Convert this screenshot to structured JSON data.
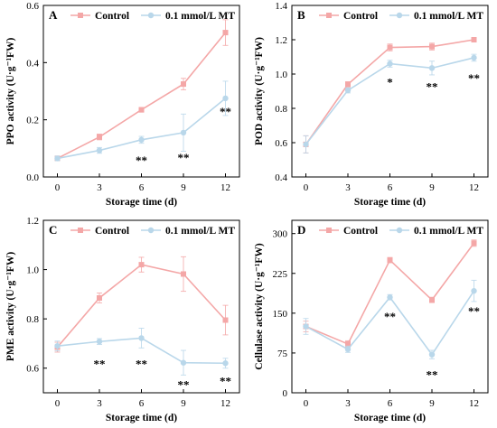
{
  "chart_data": [
    {
      "type": "line",
      "panel": "A",
      "xlabel": "Storage time (d)",
      "ylabel": "PPO activity (U·g⁻¹FW)",
      "x": [
        0,
        3,
        6,
        9,
        12
      ],
      "xlim": [
        -1,
        13
      ],
      "ylim": [
        0,
        0.6
      ],
      "yticks": [
        0,
        0.2,
        0.4,
        0.6
      ],
      "ytick_labels": [
        "0.0",
        "0.2",
        "0.4",
        "0.6"
      ],
      "grid": false,
      "legend": "top",
      "series": [
        {
          "name": "Control",
          "color": "#f4a7a7",
          "marker": "square",
          "values": [
            0.065,
            0.14,
            0.235,
            0.325,
            0.505
          ],
          "errors": [
            0.008,
            0.01,
            0.008,
            0.02,
            0.045
          ]
        },
        {
          "name": "0.1 mmol/L MT",
          "color": "#b9d7ea",
          "marker": "circle",
          "values": [
            0.065,
            0.093,
            0.13,
            0.155,
            0.275
          ],
          "errors": [
            0.008,
            0.01,
            0.012,
            0.065,
            0.06
          ]
        }
      ],
      "annotations": [
        {
          "x": 6,
          "y": 0.06,
          "text": "**"
        },
        {
          "x": 9,
          "y": 0.07,
          "text": "**"
        },
        {
          "x": 12,
          "y": 0.23,
          "text": "**"
        }
      ]
    },
    {
      "type": "line",
      "panel": "B",
      "xlabel": "Storage time (d)",
      "ylabel": "POD activity (U·g⁻¹FW)",
      "x": [
        0,
        3,
        6,
        9,
        12
      ],
      "xlim": [
        -1,
        13
      ],
      "ylim": [
        0.4,
        1.4
      ],
      "yticks": [
        0.4,
        0.6,
        0.8,
        1.0,
        1.2,
        1.4
      ],
      "ytick_labels": [
        "0.4",
        "0.6",
        "0.8",
        "1.0",
        "1.2",
        "1.4"
      ],
      "grid": false,
      "legend": "top",
      "series": [
        {
          "name": "Control",
          "color": "#f4a7a7",
          "marker": "square",
          "values": [
            0.59,
            0.94,
            1.155,
            1.16,
            1.2
          ],
          "errors": [
            0.05,
            0.015,
            0.02,
            0.02,
            0.01
          ]
        },
        {
          "name": "0.1 mmol/L MT",
          "color": "#b9d7ea",
          "marker": "circle",
          "values": [
            0.59,
            0.905,
            1.06,
            1.035,
            1.095
          ],
          "errors": [
            0.05,
            0.015,
            0.02,
            0.04,
            0.02
          ]
        }
      ],
      "annotations": [
        {
          "x": 6,
          "y": 0.955,
          "text": "*"
        },
        {
          "x": 9,
          "y": 0.93,
          "text": "**"
        },
        {
          "x": 12,
          "y": 0.98,
          "text": "**"
        }
      ]
    },
    {
      "type": "line",
      "panel": "C",
      "xlabel": "Storage time (d)",
      "ylabel": "PME activity (U·g⁻¹FW)",
      "x": [
        0,
        3,
        6,
        9,
        12
      ],
      "xlim": [
        -1,
        13
      ],
      "ylim": [
        0.5,
        1.2
      ],
      "yticks": [
        0.6,
        0.8,
        1.0,
        1.2
      ],
      "ytick_labels": [
        "0.6",
        "0.8",
        "1.0",
        "1.2"
      ],
      "grid": false,
      "legend": "top",
      "series": [
        {
          "name": "Control",
          "color": "#f4a7a7",
          "marker": "square",
          "values": [
            0.685,
            0.885,
            1.02,
            0.982,
            0.795
          ],
          "errors": [
            0.02,
            0.02,
            0.03,
            0.07,
            0.06
          ]
        },
        {
          "name": "0.1 mmol/L MT",
          "color": "#b9d7ea",
          "marker": "circle",
          "values": [
            0.69,
            0.708,
            0.722,
            0.622,
            0.62
          ],
          "errors": [
            0.02,
            0.012,
            0.04,
            0.05,
            0.02
          ]
        }
      ],
      "annotations": [
        {
          "x": 3,
          "y": 0.62,
          "text": "**"
        },
        {
          "x": 6,
          "y": 0.62,
          "text": "**"
        },
        {
          "x": 9,
          "y": 0.535,
          "text": "**"
        },
        {
          "x": 12,
          "y": 0.55,
          "text": "**"
        }
      ]
    },
    {
      "type": "line",
      "panel": "D",
      "xlabel": "Storage time (d)",
      "ylabel": "Cellulase activity (U·g⁻¹FW)",
      "x": [
        0,
        3,
        6,
        9,
        12
      ],
      "xlim": [
        -1,
        13
      ],
      "ylim": [
        0,
        325
      ],
      "yticks": [
        0,
        75,
        150,
        225,
        300
      ],
      "ytick_labels": [
        "0",
        "75",
        "150",
        "225",
        "300"
      ],
      "grid": false,
      "legend": "top",
      "series": [
        {
          "name": "Control",
          "color": "#f4a7a7",
          "marker": "square",
          "values": [
            125,
            92,
            250,
            175,
            282
          ],
          "errors": [
            10,
            6,
            5,
            5,
            6
          ]
        },
        {
          "name": "0.1 mmol/L MT",
          "color": "#b9d7ea",
          "marker": "circle",
          "values": [
            125,
            82,
            180,
            72,
            192
          ],
          "errors": [
            15,
            6,
            5,
            8,
            20
          ]
        }
      ],
      "annotations": [
        {
          "x": 6,
          "y": 145,
          "text": "**"
        },
        {
          "x": 9,
          "y": 35,
          "text": "**"
        },
        {
          "x": 12,
          "y": 155,
          "text": "**"
        }
      ]
    }
  ]
}
